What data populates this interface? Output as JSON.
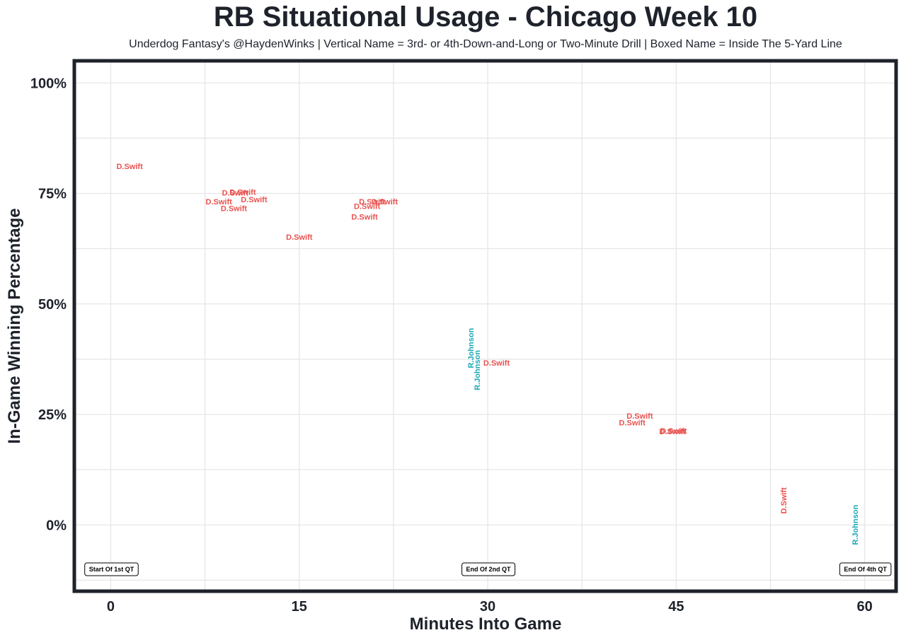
{
  "chart_data": {
    "type": "scatter",
    "title": "RB Situational Usage - Chicago Week 10",
    "subtitle": "Underdog Fantasy's @HaydenWinks | Vertical Name = 3rd- or 4th-Down-and-Long or Two-Minute Drill | Boxed Name = Inside The 5-Yard Line",
    "xlabel": "Minutes Into Game",
    "ylabel": "In-Game Winning Percentage",
    "xlim": [
      -2.9,
      62.5
    ],
    "ylim": [
      -15,
      105
    ],
    "x_ticks": [
      0,
      15,
      30,
      45,
      60
    ],
    "x_tick_labels": [
      "0",
      "15",
      "30",
      "45",
      "60"
    ],
    "y_ticks": [
      0,
      25,
      50,
      75,
      100
    ],
    "y_tick_labels": [
      "0%",
      "25%",
      "50%",
      "75%",
      "100%"
    ],
    "grid": true,
    "colors": {
      "D.Swift": "#e8524f",
      "R.Johnson": "#1aa9b5"
    },
    "points": [
      {
        "label": "D.Swift",
        "x": 1.5,
        "y": 81,
        "vertical": false
      },
      {
        "label": "D.Swift",
        "x": 8.6,
        "y": 73,
        "vertical": false
      },
      {
        "label": "D.Swift",
        "x": 9.9,
        "y": 75,
        "vertical": false
      },
      {
        "label": "D.Swift",
        "x": 10.5,
        "y": 75.2,
        "vertical": false
      },
      {
        "label": "D.Swift",
        "x": 9.8,
        "y": 71.5,
        "vertical": false
      },
      {
        "label": "D.Swift",
        "x": 11.4,
        "y": 73.5,
        "vertical": false
      },
      {
        "label": "D.Swift",
        "x": 15,
        "y": 65,
        "vertical": false
      },
      {
        "label": "D.Swift",
        "x": 20.8,
        "y": 73,
        "vertical": false
      },
      {
        "label": "D.Swift",
        "x": 21.8,
        "y": 73,
        "vertical": false
      },
      {
        "label": "D.Swift",
        "x": 20.4,
        "y": 72,
        "vertical": false
      },
      {
        "label": "D.Swift",
        "x": 20.2,
        "y": 69.6,
        "vertical": false
      },
      {
        "label": "R.Johnson",
        "x": 28.7,
        "y": 40,
        "vertical": true
      },
      {
        "label": "R.Johnson",
        "x": 29.2,
        "y": 35,
        "vertical": true
      },
      {
        "label": "D.Swift",
        "x": 30.7,
        "y": 36.5,
        "vertical": false
      },
      {
        "label": "D.Swift",
        "x": 42.1,
        "y": 24.5,
        "vertical": false
      },
      {
        "label": "D.Swift",
        "x": 41.5,
        "y": 23,
        "vertical": false
      },
      {
        "label": "D.Swift",
        "x": 44.7,
        "y": 21,
        "vertical": false
      },
      {
        "label": "D.Swift",
        "x": 44.8,
        "y": 21.2,
        "vertical": false
      },
      {
        "label": "D.Swift",
        "x": 53.6,
        "y": 5.5,
        "vertical": true
      },
      {
        "label": "R.Johnson",
        "x": 59.3,
        "y": 0,
        "vertical": true
      }
    ],
    "quarter_markers": [
      {
        "label": "Start Of 1st QT",
        "x": 0
      },
      {
        "label": "End Of 2nd QT",
        "x": 30
      },
      {
        "label": "End Of 4th QT",
        "x": 60
      }
    ]
  }
}
